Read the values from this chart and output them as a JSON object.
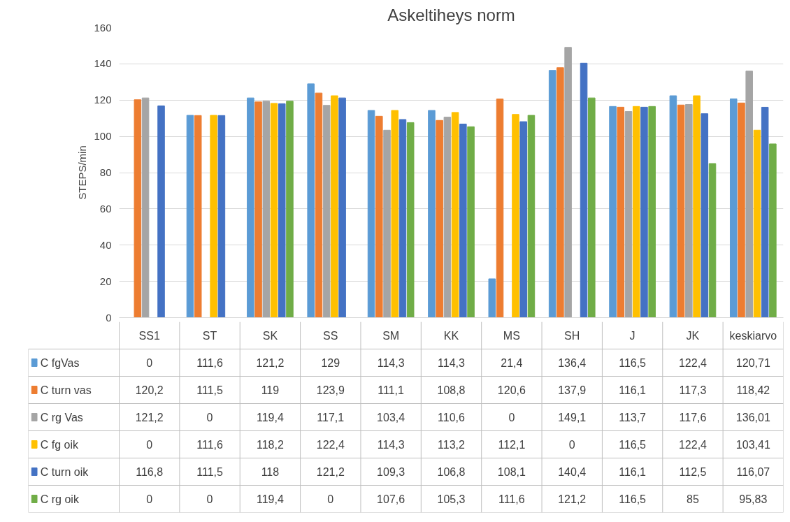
{
  "chart_data": {
    "type": "bar",
    "title": "Askeltiheys norm",
    "ylabel": "STEPS/min",
    "categories": [
      "SS1",
      "ST",
      "SK",
      "SS",
      "SM",
      "KK",
      "MS",
      "SH",
      "J",
      "JK",
      "keskiarvo"
    ],
    "series": [
      {
        "name": "C fgVas",
        "color": "#5b9bd5",
        "values": [
          0,
          111.6,
          121.2,
          129,
          114.3,
          114.3,
          21.4,
          136.4,
          116.5,
          122.4,
          120.71
        ],
        "value_labels": [
          "0",
          "111,6",
          "121,2",
          "129",
          "114,3",
          "114,3",
          "21,4",
          "136,4",
          "116,5",
          "122,4",
          "120,71"
        ]
      },
      {
        "name": "C turn vas",
        "color": "#ed7d31",
        "values": [
          120.2,
          111.5,
          119,
          123.9,
          111.1,
          108.8,
          120.6,
          137.9,
          116.1,
          117.3,
          118.42
        ],
        "value_labels": [
          "120,2",
          "111,5",
          "119",
          "123,9",
          "111,1",
          "108,8",
          "120,6",
          "137,9",
          "116,1",
          "117,3",
          "118,42"
        ]
      },
      {
        "name": "C rg Vas",
        "color": "#a5a5a5",
        "values": [
          121.2,
          0,
          119.4,
          117.1,
          103.4,
          110.6,
          0,
          149.1,
          113.7,
          117.6,
          136.01
        ],
        "value_labels": [
          "121,2",
          "0",
          "119,4",
          "117,1",
          "103,4",
          "110,6",
          "0",
          "149,1",
          "113,7",
          "117,6",
          "136,01"
        ]
      },
      {
        "name": "C fg oik",
        "color": "#ffc000",
        "values": [
          0,
          111.6,
          118.2,
          122.4,
          114.3,
          113.2,
          112.1,
          0,
          116.5,
          122.4,
          103.41
        ],
        "value_labels": [
          "0",
          "111,6",
          "118,2",
          "122,4",
          "114,3",
          "113,2",
          "112,1",
          "0",
          "116,5",
          "122,4",
          "103,41"
        ]
      },
      {
        "name": "C turn oik",
        "color": "#4472c4",
        "values": [
          116.8,
          111.5,
          118,
          121.2,
          109.3,
          106.8,
          108.1,
          140.4,
          116.1,
          112.5,
          116.07
        ],
        "value_labels": [
          "116,8",
          "111,5",
          "118",
          "121,2",
          "109,3",
          "106,8",
          "108,1",
          "140,4",
          "116,1",
          "112,5",
          "116,07"
        ]
      },
      {
        "name": "C rg oik",
        "color": "#70ad47",
        "values": [
          0,
          0,
          119.4,
          0,
          107.6,
          105.3,
          111.6,
          121.2,
          116.5,
          85,
          95.83
        ],
        "value_labels": [
          "0",
          "0",
          "119,4",
          "0",
          "107,6",
          "105,3",
          "111,6",
          "121,2",
          "116,5",
          "85",
          "95,83"
        ]
      }
    ],
    "ylim": [
      0,
      160
    ],
    "yticks": [
      0,
      20,
      40,
      60,
      80,
      100,
      120,
      140,
      160
    ],
    "grid": "y",
    "legend": "bottom",
    "tick_labels": "y"
  }
}
